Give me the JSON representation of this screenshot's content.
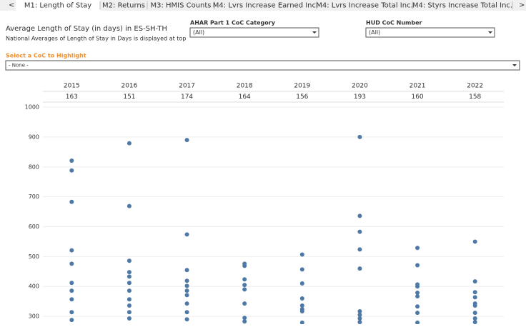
{
  "tabs": [
    "M1: Length of Stay",
    "M2: Returns",
    "M3: HMIS Counts",
    "M4: Lvrs Increase Earned Inc.",
    "M4: Lvrs Increase Total Inc.",
    "M4: Styrs Increase Total Inc."
  ],
  "filters": [
    {
      "label": "AHAR Part 1 CoC Category",
      "value": "(All)"
    },
    {
      "label": "HUD CoC Number",
      "value": "(All)"
    }
  ],
  "highlight": {
    "label": "Select a CoC to Highlight",
    "value": "- None -"
  },
  "chart_data": {
    "type": "strip",
    "title": "Average Length of Stay (in days) in ES-SH-TH",
    "subtitle": "National Averages of Length of Stay in Days is displayed at top",
    "categories": [
      "2015",
      "2016",
      "2017",
      "2018",
      "2019",
      "2020",
      "2021",
      "2022"
    ],
    "header_values": [
      163,
      151,
      174,
      164,
      156,
      193,
      160,
      158
    ],
    "color": "#4e79a7",
    "values": [
      [
        821,
        788,
        683,
        521,
        476,
        412,
        386,
        357,
        314,
        288
      ],
      [
        879,
        669,
        486,
        448,
        433,
        412,
        386,
        357,
        336,
        314,
        293
      ],
      [
        890,
        574,
        455,
        419,
        402,
        386,
        371,
        343,
        314,
        290
      ],
      [
        476,
        469,
        424,
        405,
        390,
        343,
        295,
        283
      ],
      [
        507,
        457,
        410,
        360,
        336,
        324,
        317,
        279
      ],
      [
        900,
        636,
        583,
        524,
        460,
        317,
        305,
        293,
        281
      ],
      [
        529,
        471,
        407,
        400,
        379,
        367,
        333,
        312,
        279
      ],
      [
        550,
        417,
        381,
        364,
        343,
        336,
        312,
        293,
        281
      ]
    ],
    "ylim": [
      274,
      1012
    ],
    "yticks": [
      300,
      400,
      500,
      600,
      700,
      800,
      900,
      1000
    ],
    "grid": true
  }
}
